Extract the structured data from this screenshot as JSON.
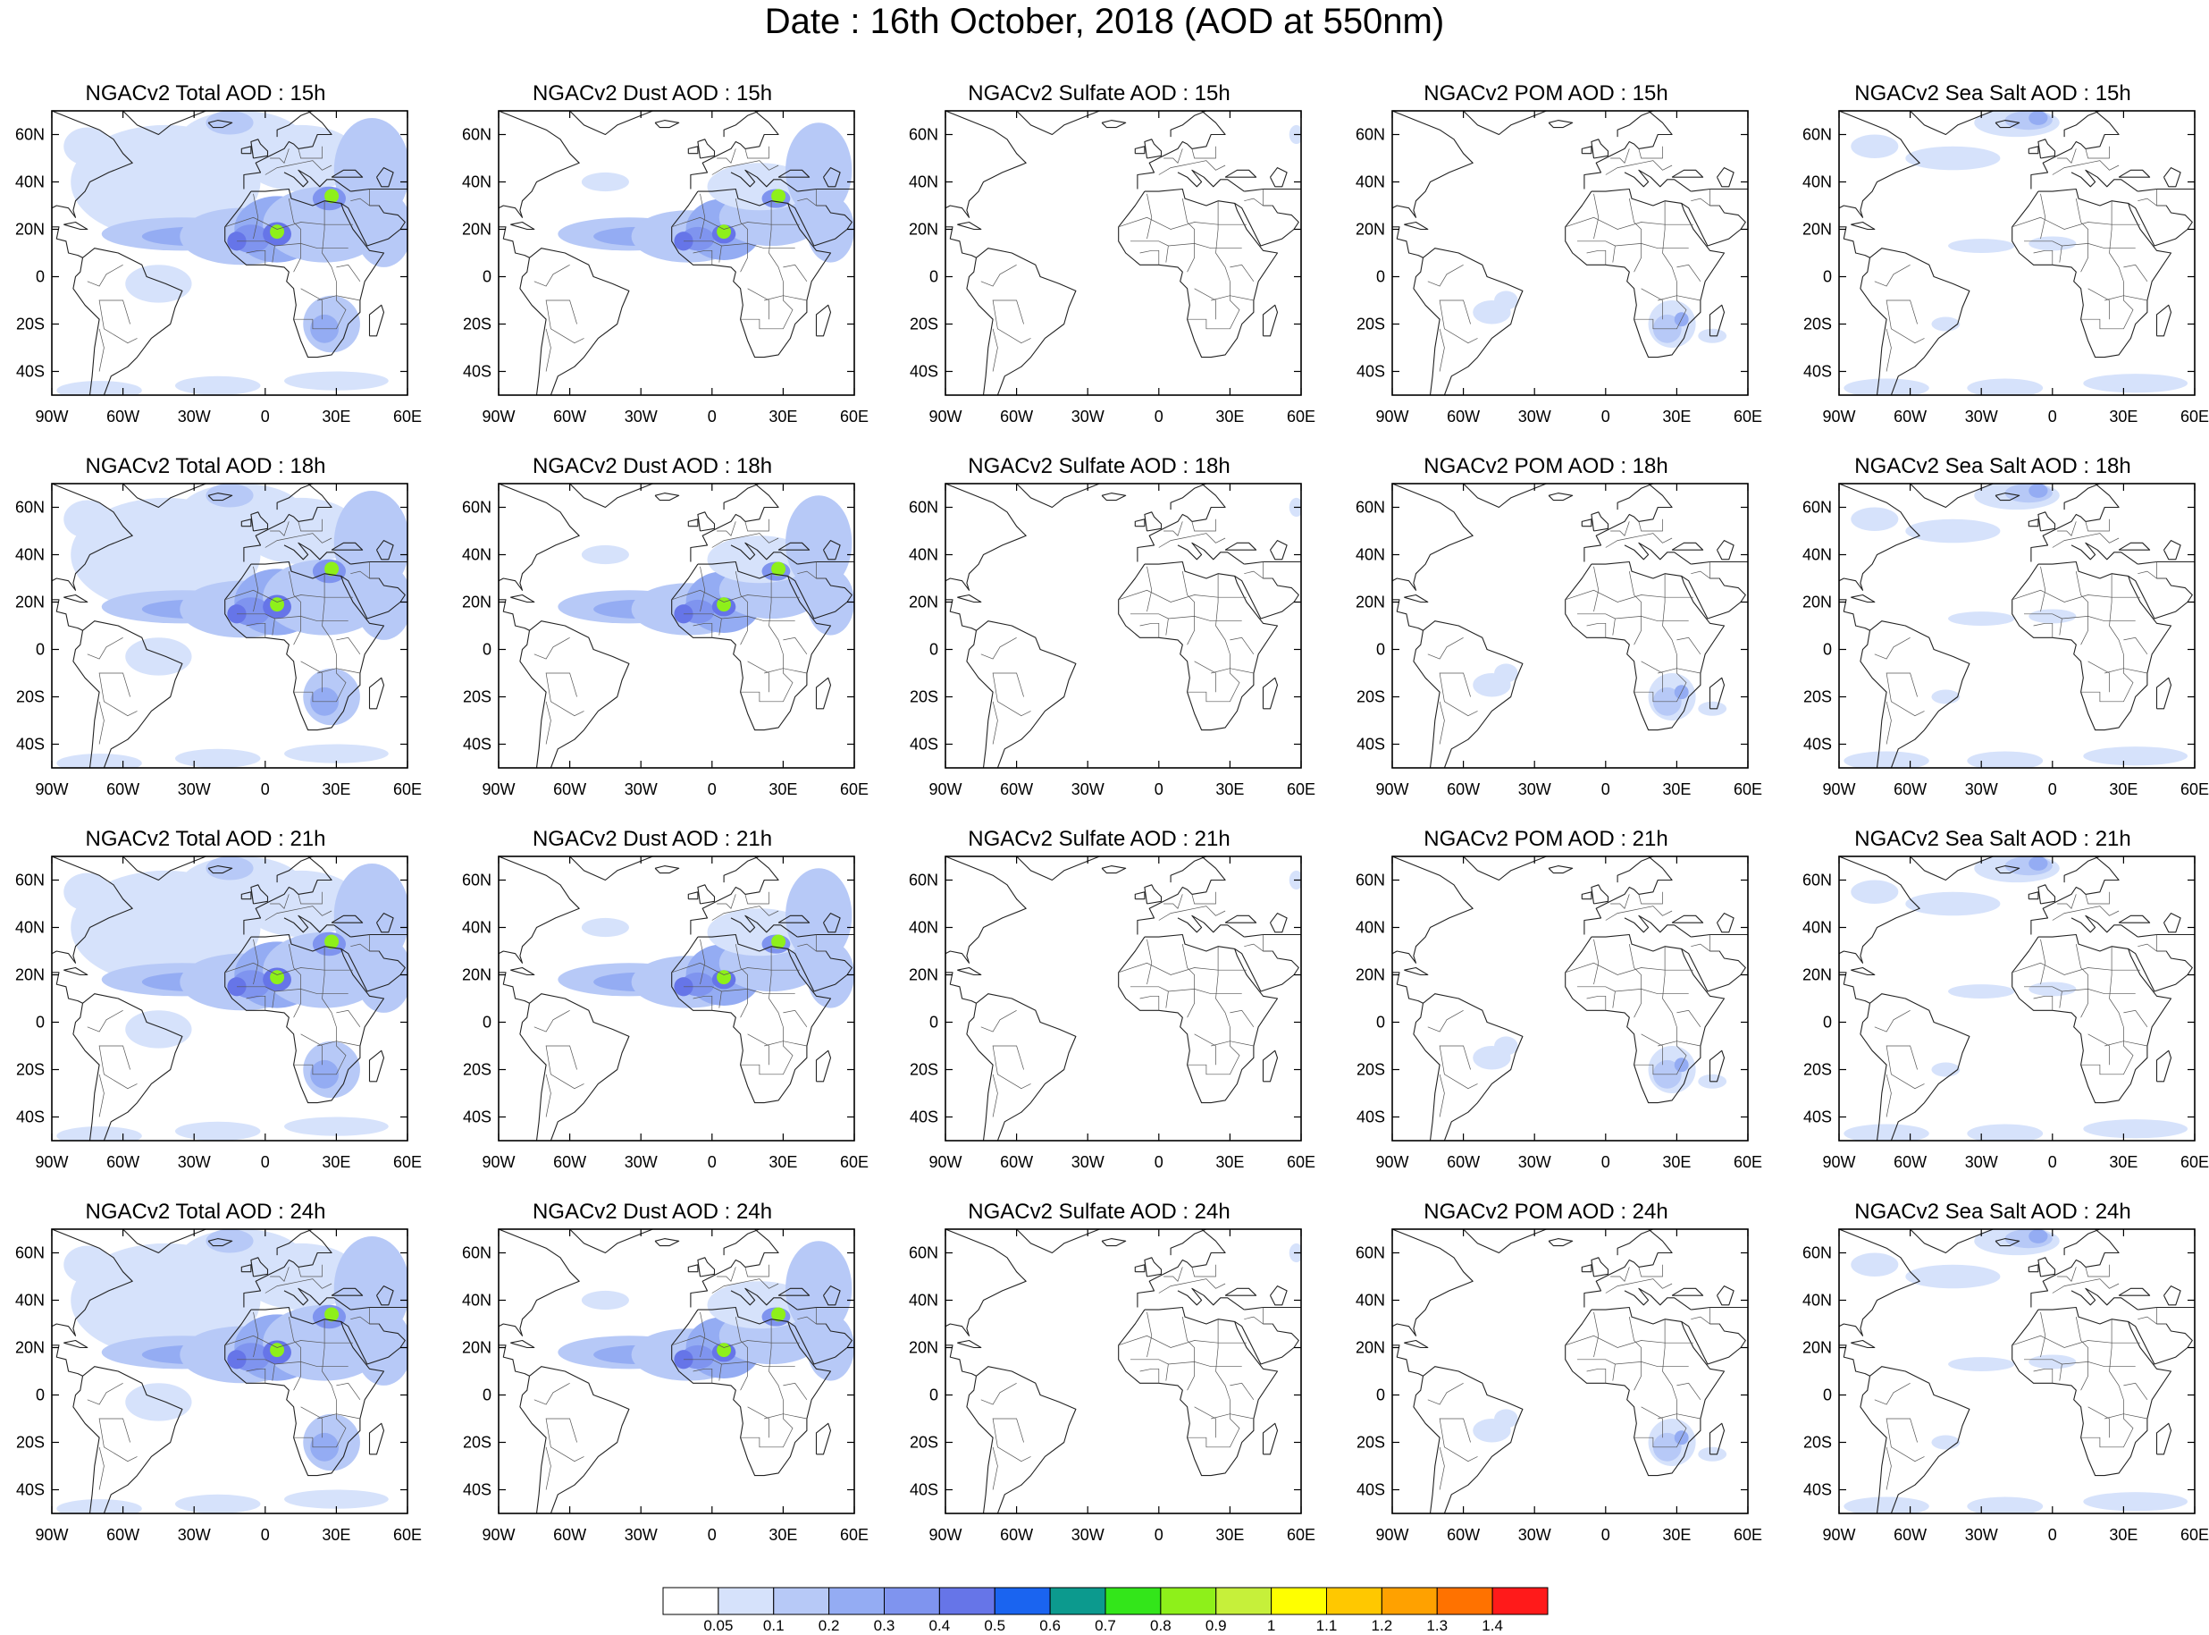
{
  "title": "Date : 16th October, 2018 (AOD at 550nm)",
  "lat_ticks": [
    "60N",
    "40N",
    "20N",
    "0",
    "20S",
    "40S"
  ],
  "lon_ticks": [
    "90W",
    "60W",
    "30W",
    "0",
    "30E",
    "60E"
  ],
  "map_extent": {
    "lon_min": -90,
    "lon_max": 60,
    "lat_min": -50,
    "lat_max": 70
  },
  "panels": [
    {
      "title": "NGACv2 Total AOD : 15h",
      "species": "total",
      "hour": "15h"
    },
    {
      "title": "NGACv2 Dust AOD : 15h",
      "species": "dust",
      "hour": "15h"
    },
    {
      "title": "NGACv2 Sulfate AOD : 15h",
      "species": "sulfate",
      "hour": "15h"
    },
    {
      "title": "NGACv2 POM AOD : 15h",
      "species": "pom",
      "hour": "15h"
    },
    {
      "title": "NGACv2 Sea Salt AOD : 15h",
      "species": "seasalt",
      "hour": "15h"
    },
    {
      "title": "NGACv2 Total AOD : 18h",
      "species": "total",
      "hour": "18h"
    },
    {
      "title": "NGACv2 Dust AOD : 18h",
      "species": "dust",
      "hour": "18h"
    },
    {
      "title": "NGACv2 Sulfate AOD : 18h",
      "species": "sulfate",
      "hour": "18h"
    },
    {
      "title": "NGACv2 POM AOD : 18h",
      "species": "pom",
      "hour": "18h"
    },
    {
      "title": "NGACv2 Sea Salt AOD : 18h",
      "species": "seasalt",
      "hour": "18h"
    },
    {
      "title": "NGACv2 Total AOD : 21h",
      "species": "total",
      "hour": "21h"
    },
    {
      "title": "NGACv2 Dust AOD : 21h",
      "species": "dust",
      "hour": "21h"
    },
    {
      "title": "NGACv2 Sulfate AOD : 21h",
      "species": "sulfate",
      "hour": "21h"
    },
    {
      "title": "NGACv2 POM AOD : 21h",
      "species": "pom",
      "hour": "21h"
    },
    {
      "title": "NGACv2 Sea Salt AOD : 21h",
      "species": "seasalt",
      "hour": "21h"
    },
    {
      "title": "NGACv2 Total AOD : 24h",
      "species": "total",
      "hour": "24h"
    },
    {
      "title": "NGACv2 Dust AOD : 24h",
      "species": "dust",
      "hour": "24h"
    },
    {
      "title": "NGACv2 Sulfate AOD : 24h",
      "species": "sulfate",
      "hour": "24h"
    },
    {
      "title": "NGACv2 POM AOD : 24h",
      "species": "pom",
      "hour": "24h"
    },
    {
      "title": "NGACv2 Sea Salt  AOD : 24h",
      "species": "seasalt",
      "hour": "24h"
    }
  ],
  "colorbar": {
    "labels": [
      "0.05",
      "0.1",
      "0.2",
      "0.3",
      "0.4",
      "0.5",
      "0.6",
      "0.7",
      "0.8",
      "0.9",
      "1",
      "1.1",
      "1.2",
      "1.3",
      "1.4"
    ],
    "colors": [
      "#ffffff",
      "#d6e2fb",
      "#b7c9f7",
      "#94acf3",
      "#7f94ef",
      "#6675e8",
      "#1a64f0",
      "#0c9a8e",
      "#33e61a",
      "#8ef01a",
      "#c6f03a",
      "#ffff00",
      "#ffc800",
      "#ffa100",
      "#ff7200",
      "#ff1a1a"
    ]
  }
}
